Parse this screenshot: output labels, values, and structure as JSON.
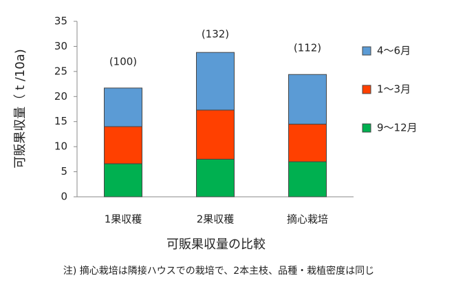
{
  "chart_data": {
    "type": "stacked_bar",
    "y_label": "可販果収量（ t /10a)",
    "x_label": "可販果収量の比較",
    "note": "注) 摘心栽培は隣接ハウスでの栽培で、2本主枝、品種・栽植密度は同じ",
    "categories": [
      "1果収穫",
      "2果収穫",
      "摘心栽培"
    ],
    "bar_annotations": [
      "(100)",
      "(132)",
      "(112)"
    ],
    "series": [
      {
        "name": "9～12月",
        "color": "#00b050",
        "values": [
          6.6,
          7.5,
          7.0
        ]
      },
      {
        "name": "1～3月",
        "color": "#ff4000",
        "values": [
          7.4,
          9.8,
          7.5
        ]
      },
      {
        "name": "4～6月",
        "color": "#5b9bd5",
        "values": [
          7.7,
          11.5,
          9.9
        ]
      }
    ],
    "ylim": [
      0,
      35
    ],
    "yticks": [
      0,
      5,
      10,
      15,
      20,
      25,
      30,
      35
    ]
  }
}
